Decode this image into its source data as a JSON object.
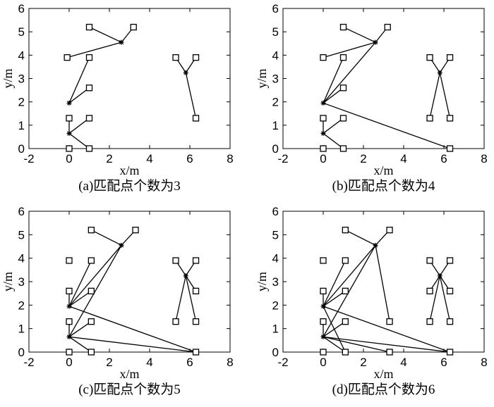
{
  "chart_data": [
    {
      "type": "scatter",
      "caption": "(a)匹配点个数为3",
      "xlabel": "x/m",
      "ylabel": "y/m",
      "xlim": [
        -2,
        8
      ],
      "ylim": [
        0,
        6
      ],
      "xticks": [
        "-2",
        "0",
        "2",
        "4",
        "6",
        "8"
      ],
      "yticks": [
        "0",
        "1",
        "2",
        "3",
        "4",
        "5",
        "6"
      ],
      "grid": false,
      "anchors": [
        [
          0,
          0
        ],
        [
          1,
          0
        ],
        [
          0,
          1.3
        ],
        [
          1,
          1.3
        ],
        [
          1,
          2.6
        ],
        [
          -0.1,
          3.9
        ],
        [
          1,
          3.9
        ],
        [
          1,
          5.2
        ],
        [
          3.2,
          5.2
        ],
        [
          5.3,
          3.9
        ],
        [
          6.3,
          3.9
        ],
        [
          6.3,
          1.3
        ]
      ],
      "estimates": [
        [
          0,
          0.65
        ],
        [
          0,
          1.95
        ],
        [
          2.6,
          4.55
        ],
        [
          5.8,
          3.25
        ]
      ],
      "links": [
        [
          [
            0,
            0.65
          ],
          [
            1,
            0
          ]
        ],
        [
          [
            0,
            0.65
          ],
          [
            1,
            1.3
          ]
        ],
        [
          [
            0,
            0.65
          ],
          [
            0,
            1.3
          ]
        ],
        [
          [
            0,
            1.95
          ],
          [
            1,
            3.9
          ]
        ],
        [
          [
            0,
            1.95
          ],
          [
            1,
            2.6
          ]
        ],
        [
          [
            2.6,
            4.55
          ],
          [
            1,
            5.2
          ]
        ],
        [
          [
            2.6,
            4.55
          ],
          [
            3.2,
            5.2
          ]
        ],
        [
          [
            2.6,
            4.55
          ],
          [
            -0.1,
            3.9
          ]
        ],
        [
          [
            5.8,
            3.25
          ],
          [
            5.3,
            3.9
          ]
        ],
        [
          [
            5.8,
            3.25
          ],
          [
            6.3,
            3.9
          ]
        ],
        [
          [
            5.8,
            3.25
          ],
          [
            6.3,
            1.3
          ]
        ]
      ]
    },
    {
      "type": "scatter",
      "caption": "(b)匹配点个数为4",
      "xlabel": "x/m",
      "ylabel": "y/m",
      "xlim": [
        -2,
        8
      ],
      "ylim": [
        0,
        6
      ],
      "xticks": [
        "-2",
        "0",
        "2",
        "4",
        "6",
        "8"
      ],
      "yticks": [
        "0",
        "1",
        "2",
        "3",
        "4",
        "5",
        "6"
      ],
      "grid": false,
      "anchors": [
        [
          0,
          0
        ],
        [
          1,
          0
        ],
        [
          0,
          1.3
        ],
        [
          1,
          1.3
        ],
        [
          1,
          2.6
        ],
        [
          0,
          3.9
        ],
        [
          1,
          3.9
        ],
        [
          1,
          5.2
        ],
        [
          3.2,
          5.2
        ],
        [
          5.3,
          3.9
        ],
        [
          6.3,
          3.9
        ],
        [
          5.3,
          1.3
        ],
        [
          6.3,
          1.3
        ],
        [
          6.3,
          0
        ]
      ],
      "estimates": [
        [
          0,
          0.65
        ],
        [
          0,
          1.95
        ],
        [
          2.6,
          4.55
        ],
        [
          5.8,
          3.25
        ]
      ],
      "links": [
        [
          [
            0,
            0.65
          ],
          [
            1,
            0
          ]
        ],
        [
          [
            0,
            0.65
          ],
          [
            1,
            1.3
          ]
        ],
        [
          [
            0,
            0.65
          ],
          [
            0,
            1.3
          ]
        ],
        [
          [
            0,
            1.95
          ],
          [
            1,
            3.9
          ]
        ],
        [
          [
            0,
            1.95
          ],
          [
            1,
            2.6
          ]
        ],
        [
          [
            0,
            1.95
          ],
          [
            6.3,
            0
          ]
        ],
        [
          [
            0,
            1.95
          ],
          [
            2.6,
            4.55
          ]
        ],
        [
          [
            2.6,
            4.55
          ],
          [
            1,
            5.2
          ]
        ],
        [
          [
            2.6,
            4.55
          ],
          [
            3.2,
            5.2
          ]
        ],
        [
          [
            2.6,
            4.55
          ],
          [
            0,
            3.9
          ]
        ],
        [
          [
            5.8,
            3.25
          ],
          [
            5.3,
            3.9
          ]
        ],
        [
          [
            5.8,
            3.25
          ],
          [
            6.3,
            3.9
          ]
        ],
        [
          [
            5.8,
            3.25
          ],
          [
            5.3,
            1.3
          ]
        ],
        [
          [
            5.8,
            3.25
          ],
          [
            6.3,
            1.3
          ]
        ]
      ]
    },
    {
      "type": "scatter",
      "caption": "(c)匹配点个数为5",
      "xlabel": "x/m",
      "ylabel": "y/m",
      "xlim": [
        -2,
        8
      ],
      "ylim": [
        0,
        6
      ],
      "xticks": [
        "-2",
        "0",
        "2",
        "4",
        "6",
        "8"
      ],
      "yticks": [
        "0",
        "1",
        "2",
        "3",
        "4",
        "5",
        "6"
      ],
      "grid": false,
      "anchors": [
        [
          0,
          0
        ],
        [
          1.1,
          0
        ],
        [
          0,
          1.3
        ],
        [
          1.1,
          1.3
        ],
        [
          0,
          2.6
        ],
        [
          1.1,
          2.6
        ],
        [
          0,
          3.9
        ],
        [
          1.1,
          3.9
        ],
        [
          1.1,
          5.2
        ],
        [
          3.3,
          5.2
        ],
        [
          5.3,
          3.9
        ],
        [
          6.3,
          3.9
        ],
        [
          6.3,
          2.6
        ],
        [
          5.3,
          1.3
        ],
        [
          6.3,
          1.3
        ],
        [
          6.3,
          0
        ]
      ],
      "estimates": [
        [
          0,
          0.65
        ],
        [
          0,
          1.95
        ],
        [
          2.6,
          4.55
        ],
        [
          5.8,
          3.25
        ]
      ],
      "links": [
        [
          [
            0,
            0.65
          ],
          [
            1.1,
            0
          ]
        ],
        [
          [
            0,
            0.65
          ],
          [
            1.1,
            1.3
          ]
        ],
        [
          [
            0,
            0.65
          ],
          [
            0,
            1.3
          ]
        ],
        [
          [
            0,
            0.65
          ],
          [
            6.3,
            0
          ]
        ],
        [
          [
            0,
            0.65
          ],
          [
            2.6,
            4.55
          ]
        ],
        [
          [
            0,
            1.95
          ],
          [
            1.1,
            3.9
          ]
        ],
        [
          [
            0,
            1.95
          ],
          [
            1.1,
            2.6
          ]
        ],
        [
          [
            0,
            1.95
          ],
          [
            0,
            2.6
          ]
        ],
        [
          [
            0,
            1.95
          ],
          [
            6.3,
            0
          ]
        ],
        [
          [
            0,
            1.95
          ],
          [
            2.6,
            4.55
          ]
        ],
        [
          [
            2.6,
            4.55
          ],
          [
            1.1,
            5.2
          ]
        ],
        [
          [
            2.6,
            4.55
          ],
          [
            3.3,
            5.2
          ]
        ],
        [
          [
            5.8,
            3.25
          ],
          [
            5.3,
            3.9
          ]
        ],
        [
          [
            5.8,
            3.25
          ],
          [
            6.3,
            3.9
          ]
        ],
        [
          [
            5.8,
            3.25
          ],
          [
            6.3,
            2.6
          ]
        ],
        [
          [
            5.8,
            3.25
          ],
          [
            5.3,
            1.3
          ]
        ],
        [
          [
            5.8,
            3.25
          ],
          [
            6.3,
            1.3
          ]
        ]
      ]
    },
    {
      "type": "scatter",
      "caption": "(d)匹配点个数为6",
      "xlabel": "x/m",
      "ylabel": "y/m",
      "xlim": [
        -2,
        8
      ],
      "ylim": [
        0,
        6
      ],
      "xticks": [
        "-2",
        "0",
        "2",
        "4",
        "6",
        "8"
      ],
      "yticks": [
        "0",
        "1",
        "2",
        "3",
        "4",
        "5",
        "6"
      ],
      "grid": false,
      "anchors": [
        [
          0,
          0
        ],
        [
          1.1,
          0
        ],
        [
          3.3,
          0
        ],
        [
          0,
          1.3
        ],
        [
          1.1,
          1.3
        ],
        [
          3.3,
          1.3
        ],
        [
          0,
          2.6
        ],
        [
          1.1,
          2.6
        ],
        [
          0,
          3.9
        ],
        [
          1.1,
          3.9
        ],
        [
          1.1,
          5.2
        ],
        [
          3.3,
          5.2
        ],
        [
          5.3,
          3.9
        ],
        [
          6.3,
          3.9
        ],
        [
          5.3,
          2.6
        ],
        [
          6.3,
          2.6
        ],
        [
          5.3,
          1.3
        ],
        [
          6.3,
          1.3
        ],
        [
          6.3,
          0
        ]
      ],
      "estimates": [
        [
          0,
          0.65
        ],
        [
          0,
          1.95
        ],
        [
          2.6,
          4.55
        ],
        [
          5.8,
          3.25
        ]
      ],
      "links": [
        [
          [
            0,
            0.65
          ],
          [
            1.1,
            0
          ]
        ],
        [
          [
            0,
            0.65
          ],
          [
            3.3,
            0
          ]
        ],
        [
          [
            0,
            0.65
          ],
          [
            1.1,
            1.3
          ]
        ],
        [
          [
            0,
            0.65
          ],
          [
            0,
            1.3
          ]
        ],
        [
          [
            0,
            0.65
          ],
          [
            6.3,
            0
          ]
        ],
        [
          [
            0,
            0.65
          ],
          [
            2.6,
            4.55
          ]
        ],
        [
          [
            0,
            1.95
          ],
          [
            1.1,
            3.9
          ]
        ],
        [
          [
            0,
            1.95
          ],
          [
            1.1,
            2.6
          ]
        ],
        [
          [
            0,
            1.95
          ],
          [
            0,
            2.6
          ]
        ],
        [
          [
            0,
            1.95
          ],
          [
            6.3,
            0
          ]
        ],
        [
          [
            0,
            1.95
          ],
          [
            2.6,
            4.55
          ]
        ],
        [
          [
            0,
            1.95
          ],
          [
            1.1,
            0
          ]
        ],
        [
          [
            2.6,
            4.55
          ],
          [
            1.1,
            5.2
          ]
        ],
        [
          [
            2.6,
            4.55
          ],
          [
            3.3,
            5.2
          ]
        ],
        [
          [
            2.6,
            4.55
          ],
          [
            3.3,
            1.3
          ]
        ],
        [
          [
            5.8,
            3.25
          ],
          [
            5.3,
            3.9
          ]
        ],
        [
          [
            5.8,
            3.25
          ],
          [
            6.3,
            3.9
          ]
        ],
        [
          [
            5.8,
            3.25
          ],
          [
            5.3,
            2.6
          ]
        ],
        [
          [
            5.8,
            3.25
          ],
          [
            6.3,
            2.6
          ]
        ],
        [
          [
            5.8,
            3.25
          ],
          [
            5.3,
            1.3
          ]
        ],
        [
          [
            5.8,
            3.25
          ],
          [
            6.3,
            1.3
          ]
        ]
      ]
    }
  ]
}
